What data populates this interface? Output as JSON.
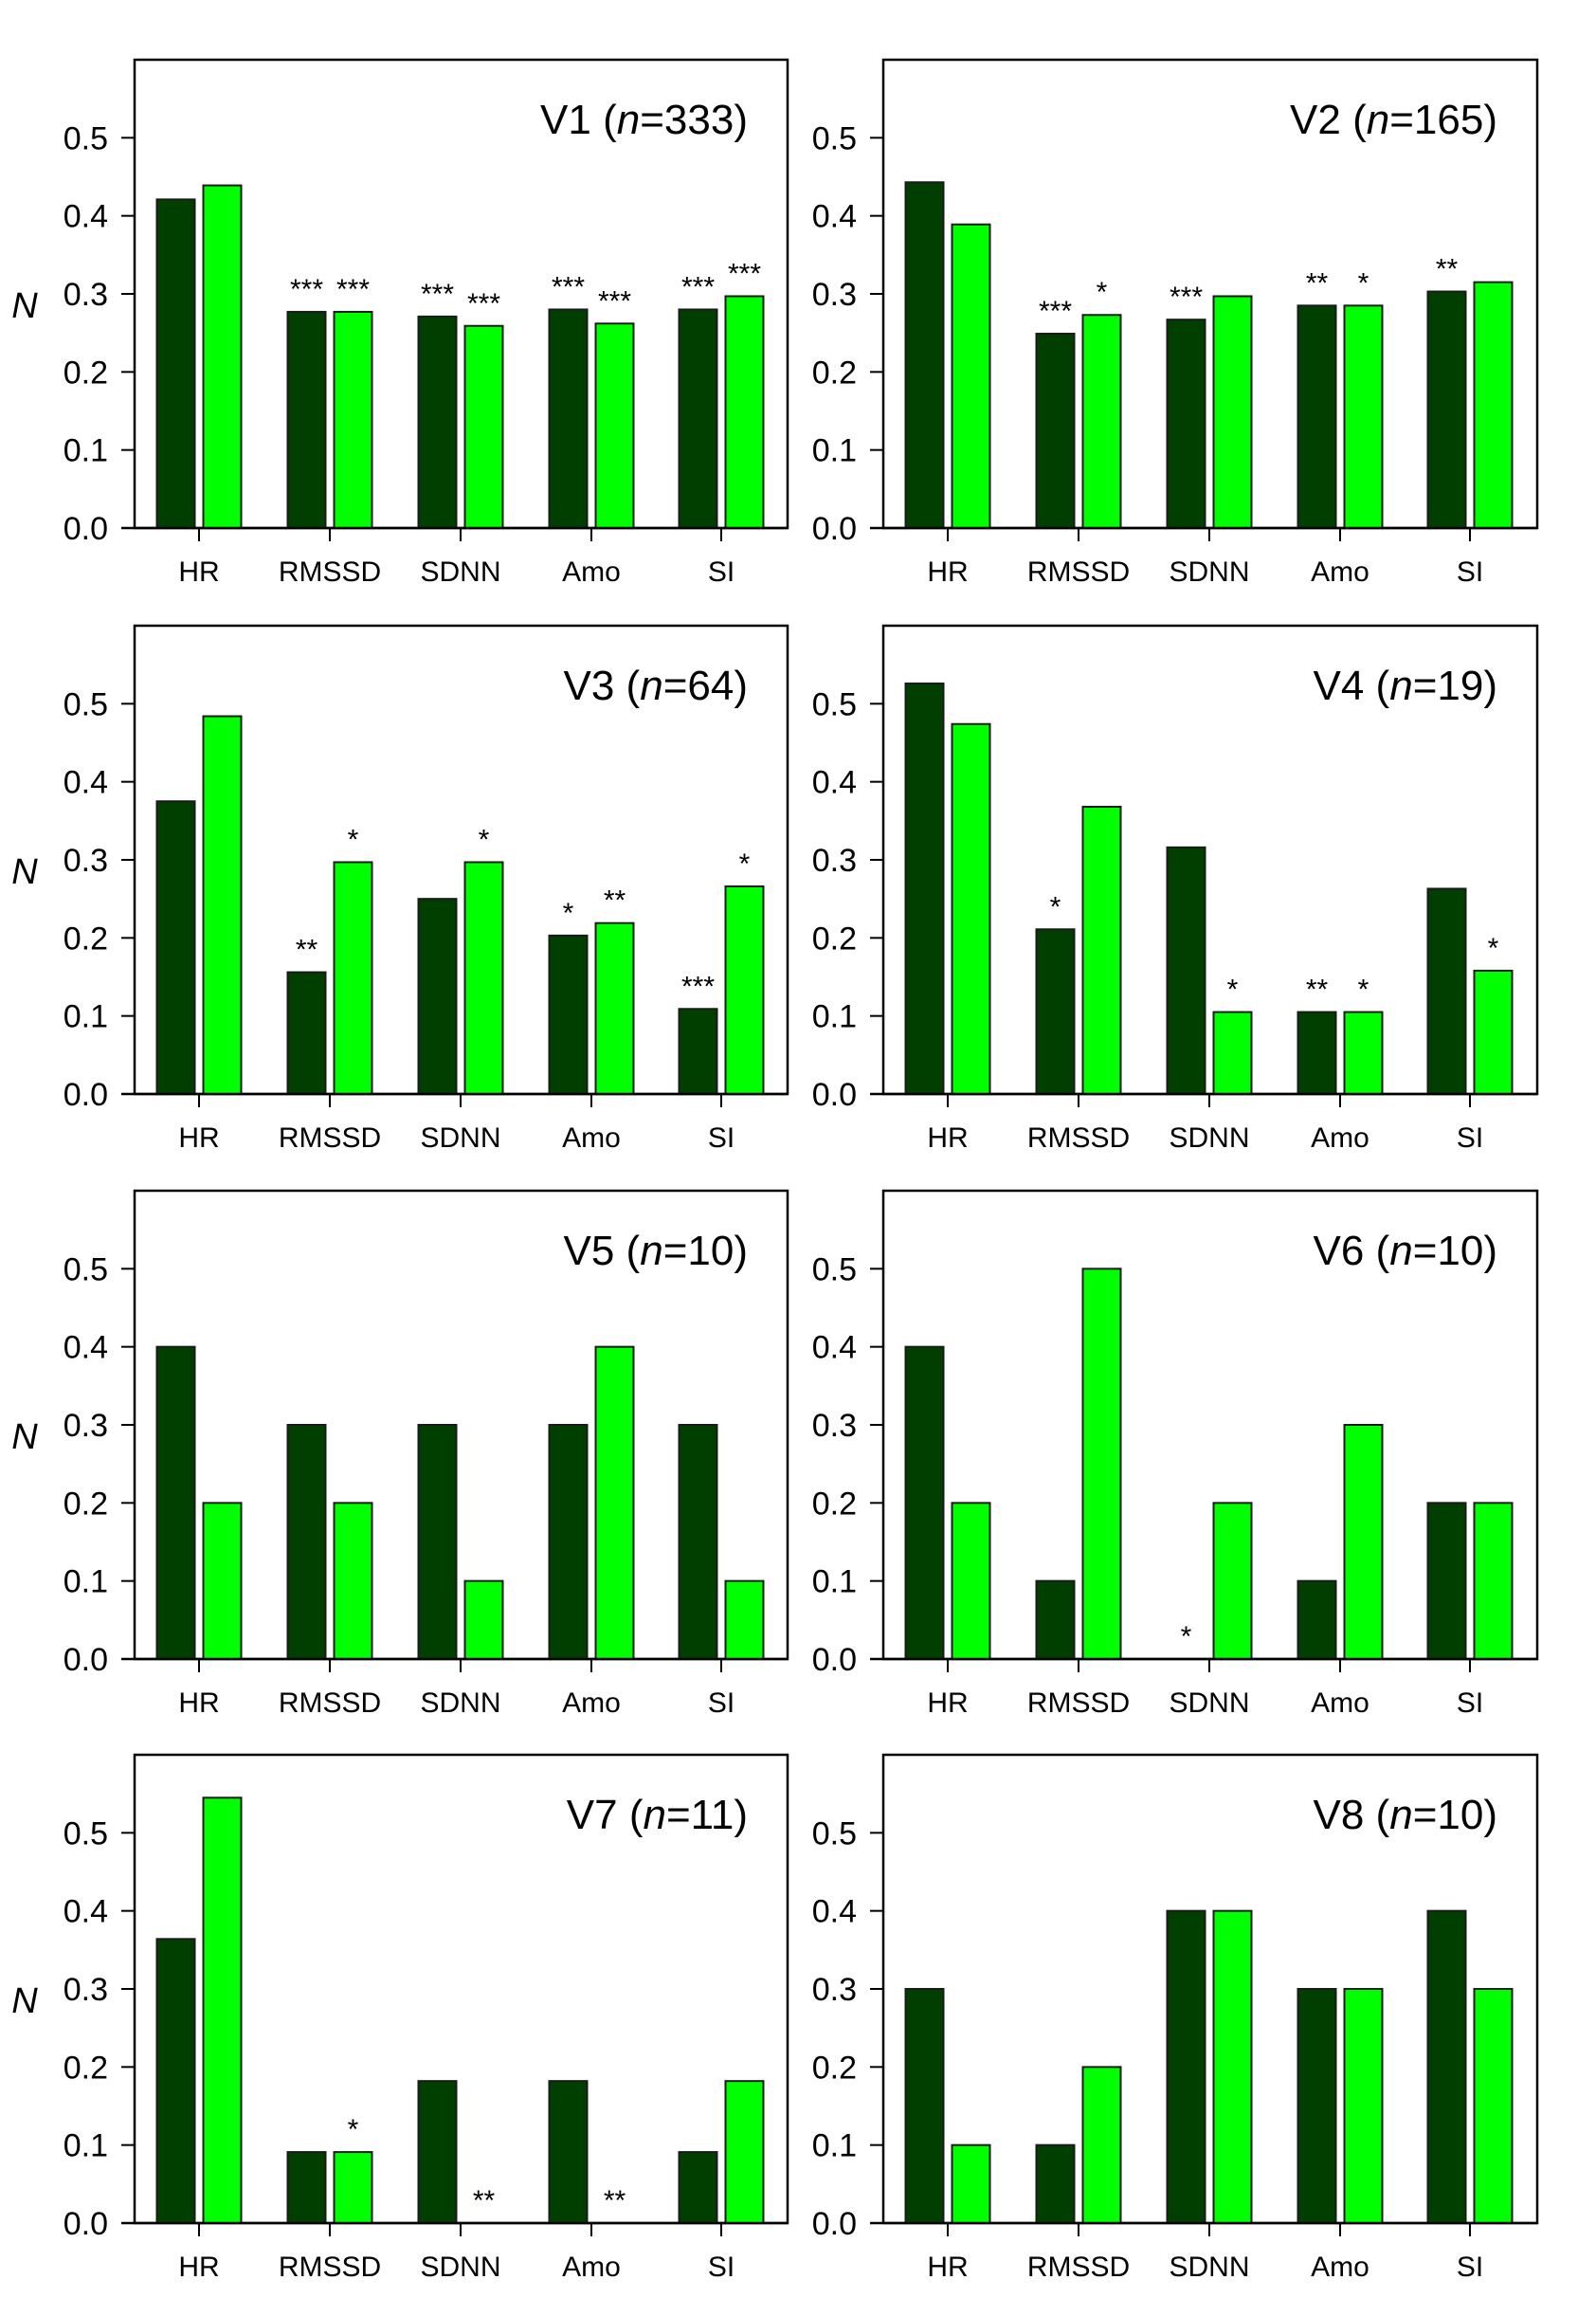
{
  "chart_data": {
    "type": "bar",
    "layout": "4x2 grid of panels",
    "ylabel": "N",
    "categories": [
      "HR",
      "RMSSD",
      "SDNN",
      "Amo",
      "SI"
    ],
    "ylim": [
      0,
      0.6
    ],
    "yticks": [
      "0.0",
      "0.1",
      "0.2",
      "0.3",
      "0.4",
      "0.5"
    ],
    "series_colors": [
      "#003f00",
      "#00ff00"
    ],
    "series_names": [
      "series 1 (dark green)",
      "series 2 (bright green)"
    ],
    "panels": [
      {
        "id": "V1",
        "title": "V1",
        "n": "333",
        "series": [
          {
            "values": [
              0.421,
              0.277,
              0.271,
              0.28,
              0.28
            ],
            "sig": [
              "",
              "***",
              "***",
              "***",
              "***"
            ]
          },
          {
            "values": [
              0.439,
              0.277,
              0.259,
              0.262,
              0.297
            ],
            "sig": [
              "",
              "***",
              "***",
              "***",
              "***"
            ]
          }
        ]
      },
      {
        "id": "V2",
        "title": "V2",
        "n": "165",
        "series": [
          {
            "values": [
              0.443,
              0.249,
              0.267,
              0.285,
              0.303
            ],
            "sig": [
              "",
              "***",
              "***",
              "**",
              "**"
            ]
          },
          {
            "values": [
              0.389,
              0.273,
              0.297,
              0.285,
              0.315
            ],
            "sig": [
              "",
              "*",
              "",
              "*",
              ""
            ]
          }
        ]
      },
      {
        "id": "V3",
        "title": "V3",
        "n": "64",
        "series": [
          {
            "values": [
              0.375,
              0.156,
              0.25,
              0.203,
              0.109
            ],
            "sig": [
              "",
              "**",
              "",
              "*",
              "***"
            ]
          },
          {
            "values": [
              0.484,
              0.297,
              0.297,
              0.219,
              0.266
            ],
            "sig": [
              "",
              "*",
              "*",
              "**",
              "*"
            ]
          }
        ]
      },
      {
        "id": "V4",
        "title": "V4",
        "n": "19",
        "series": [
          {
            "values": [
              0.526,
              0.211,
              0.316,
              0.105,
              0.263
            ],
            "sig": [
              "",
              "*",
              "",
              "**",
              ""
            ]
          },
          {
            "values": [
              0.474,
              0.368,
              0.105,
              0.105,
              0.158
            ],
            "sig": [
              "",
              "",
              "*",
              "*",
              "*"
            ]
          }
        ]
      },
      {
        "id": "V5",
        "title": "V5",
        "n": "10",
        "series": [
          {
            "values": [
              0.4,
              0.3,
              0.3,
              0.3,
              0.3
            ],
            "sig": [
              "",
              "",
              "",
              "",
              ""
            ]
          },
          {
            "values": [
              0.2,
              0.2,
              0.1,
              0.4,
              0.1
            ],
            "sig": [
              "",
              "",
              "",
              "",
              ""
            ]
          }
        ]
      },
      {
        "id": "V6",
        "title": "V6",
        "n": "10",
        "series": [
          {
            "values": [
              0.4,
              0.1,
              0.0,
              0.1,
              0.2
            ],
            "sig": [
              "",
              "",
              "*",
              "",
              ""
            ]
          },
          {
            "values": [
              0.2,
              0.5,
              0.2,
              0.3,
              0.2
            ],
            "sig": [
              "",
              "",
              "",
              "",
              ""
            ]
          }
        ]
      },
      {
        "id": "V7",
        "title": "V7",
        "n": "11",
        "series": [
          {
            "values": [
              0.364,
              0.091,
              0.182,
              0.182,
              0.091
            ],
            "sig": [
              "",
              "",
              "",
              "",
              ""
            ]
          },
          {
            "values": [
              0.545,
              0.091,
              0.0,
              0.0,
              0.182
            ],
            "sig": [
              "",
              "*",
              "**",
              "**",
              ""
            ]
          }
        ]
      },
      {
        "id": "V8",
        "title": "V8",
        "n": "10",
        "series": [
          {
            "values": [
              0.3,
              0.1,
              0.4,
              0.3,
              0.4
            ],
            "sig": [
              "",
              "",
              "",
              "",
              ""
            ]
          },
          {
            "values": [
              0.1,
              0.2,
              0.4,
              0.3,
              0.3
            ],
            "sig": [
              "",
              "",
              "",
              "",
              ""
            ]
          }
        ]
      }
    ]
  }
}
